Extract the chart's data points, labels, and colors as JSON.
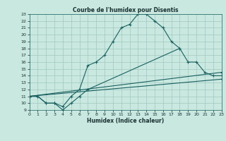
{
  "title": "Courbe de l'humidex pour Disentis",
  "xlabel": "Humidex (Indice chaleur)",
  "background_color": "#c8e8e0",
  "grid_color": "#a0c8c0",
  "line_color": "#1a6060",
  "xlim": [
    0,
    23
  ],
  "ylim": [
    9,
    23
  ],
  "xticks": [
    0,
    1,
    2,
    3,
    4,
    5,
    6,
    7,
    8,
    9,
    10,
    11,
    12,
    13,
    14,
    15,
    16,
    17,
    18,
    19,
    20,
    21,
    22,
    23
  ],
  "yticks": [
    9,
    10,
    11,
    12,
    13,
    14,
    15,
    16,
    17,
    18,
    19,
    20,
    21,
    22,
    23
  ],
  "lines": [
    {
      "x": [
        0,
        1,
        2,
        3,
        4,
        5,
        6,
        7,
        8,
        9,
        10,
        11,
        12,
        13,
        14,
        15,
        16,
        17,
        18
      ],
      "y": [
        11,
        11,
        10,
        10,
        9.5,
        11,
        12,
        15.5,
        16,
        17,
        19,
        21,
        21.5,
        23,
        23,
        22,
        21,
        19,
        18
      ]
    },
    {
      "x": [
        0,
        1,
        2,
        3,
        4,
        5,
        6,
        7,
        18,
        19,
        20,
        21,
        22,
        23
      ],
      "y": [
        11,
        11,
        10,
        10,
        9,
        10,
        11,
        12,
        18,
        16,
        16,
        14.5,
        14,
        14
      ]
    },
    {
      "x": [
        0,
        23
      ],
      "y": [
        11,
        13.5
      ]
    },
    {
      "x": [
        0,
        23
      ],
      "y": [
        11,
        14.5
      ]
    }
  ]
}
